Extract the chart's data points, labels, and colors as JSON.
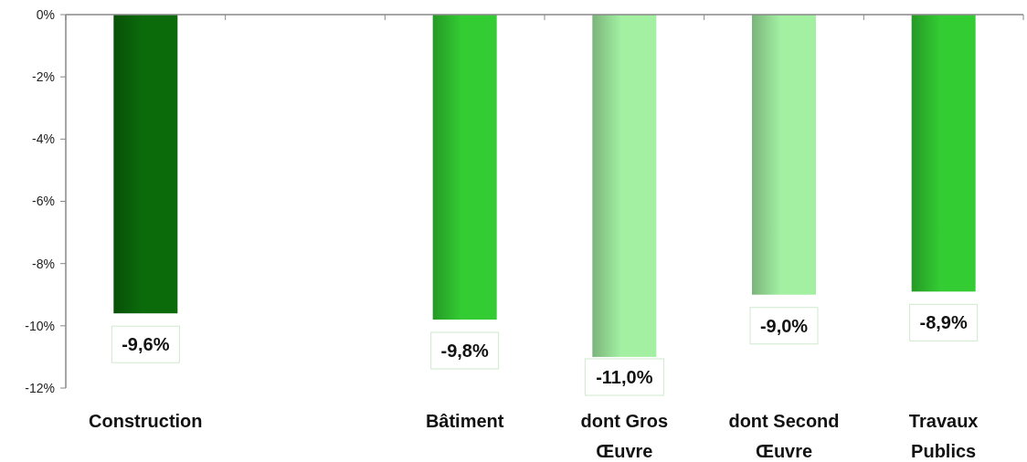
{
  "chart_data": {
    "type": "bar",
    "categories": [
      "Construction",
      null,
      "Bâtiment",
      "dont Gros Œuvre",
      "dont Second Œuvre",
      "Travaux Publics"
    ],
    "values": [
      -9.6,
      null,
      -9.8,
      -11.0,
      -9.0,
      -8.9
    ],
    "colors": [
      "#0b6b0b",
      "#33cc33",
      "#33cc33",
      "#a3f0a3",
      "#a3f0a3",
      "#33cc33"
    ],
    "value_labels": [
      "-9,6%",
      null,
      "-9,8%",
      "-11,0%",
      "-9,0%",
      "-8,9%"
    ],
    "ylim": [
      -12,
      0
    ],
    "yticks": [
      {
        "value": 0,
        "label": "0%"
      },
      {
        "value": -2,
        "label": "-2%"
      },
      {
        "value": -4,
        "label": "-4%"
      },
      {
        "value": -6,
        "label": "-6%"
      },
      {
        "value": -8,
        "label": "-8%"
      },
      {
        "value": -10,
        "label": "-10%"
      },
      {
        "value": -12,
        "label": "-12%"
      }
    ],
    "grid": false
  }
}
